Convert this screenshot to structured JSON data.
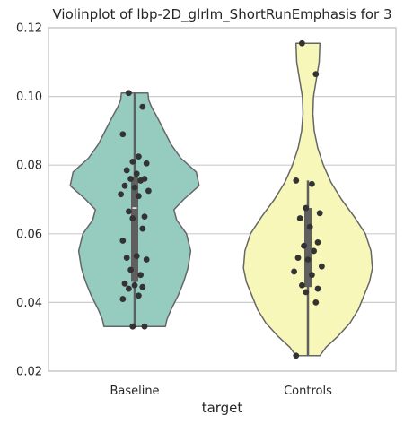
{
  "chart_data": {
    "type": "violin",
    "title": "Violinplot of lbp-2D_glrlm_ShortRunEmphasis for 3",
    "xlabel": "target",
    "ylabel": "",
    "ylim": [
      0.02,
      0.12
    ],
    "yticks": [
      "0.02",
      "0.04",
      "0.06",
      "0.08",
      "0.10",
      "0.12"
    ],
    "ytick_values": [
      0.02,
      0.04,
      0.06,
      0.08,
      0.1,
      0.12
    ],
    "grid": "horizontal",
    "categories": [
      "Baseline",
      "Controls"
    ],
    "series": [
      {
        "category": "Baseline",
        "color": "#96cbc0",
        "min": 0.033,
        "q1": 0.046,
        "median": 0.0675,
        "q3": 0.0765,
        "max": 0.101,
        "density": [
          [
            0.033,
            0.44
          ],
          [
            0.035,
            0.46
          ],
          [
            0.038,
            0.52
          ],
          [
            0.042,
            0.62
          ],
          [
            0.046,
            0.7
          ],
          [
            0.05,
            0.76
          ],
          [
            0.055,
            0.8
          ],
          [
            0.06,
            0.74
          ],
          [
            0.064,
            0.6
          ],
          [
            0.067,
            0.56
          ],
          [
            0.07,
            0.7
          ],
          [
            0.074,
            0.92
          ],
          [
            0.078,
            0.88
          ],
          [
            0.082,
            0.66
          ],
          [
            0.086,
            0.52
          ],
          [
            0.09,
            0.42
          ],
          [
            0.094,
            0.32
          ],
          [
            0.097,
            0.24
          ],
          [
            0.099,
            0.2
          ],
          [
            0.101,
            0.19
          ]
        ],
        "points": [
          0.101,
          0.097,
          0.089,
          0.0825,
          0.081,
          0.0805,
          0.0785,
          0.0775,
          0.076,
          0.076,
          0.0755,
          0.074,
          0.0735,
          0.0725,
          0.0715,
          0.071,
          0.0665,
          0.065,
          0.0645,
          0.0615,
          0.058,
          0.0535,
          0.053,
          0.0525,
          0.0495,
          0.048,
          0.0455,
          0.045,
          0.0445,
          0.044,
          0.042,
          0.041,
          0.033,
          0.033
        ]
      },
      {
        "category": "Controls",
        "color": "#f8f7ba",
        "min": 0.0245,
        "q1": 0.0445,
        "median": 0.053,
        "q3": 0.0675,
        "max": 0.0755,
        "density": [
          [
            0.0245,
            0.17
          ],
          [
            0.027,
            0.26
          ],
          [
            0.03,
            0.42
          ],
          [
            0.034,
            0.6
          ],
          [
            0.038,
            0.72
          ],
          [
            0.042,
            0.8
          ],
          [
            0.046,
            0.88
          ],
          [
            0.05,
            0.92
          ],
          [
            0.055,
            0.9
          ],
          [
            0.06,
            0.82
          ],
          [
            0.065,
            0.66
          ],
          [
            0.07,
            0.48
          ],
          [
            0.075,
            0.33
          ],
          [
            0.08,
            0.22
          ],
          [
            0.085,
            0.14
          ],
          [
            0.09,
            0.09
          ],
          [
            0.095,
            0.07
          ],
          [
            0.1,
            0.08
          ],
          [
            0.105,
            0.12
          ],
          [
            0.11,
            0.16
          ],
          [
            0.1155,
            0.17
          ]
        ],
        "points": [
          0.1155,
          0.1065,
          0.0755,
          0.0745,
          0.0675,
          0.066,
          0.0645,
          0.062,
          0.0575,
          0.0565,
          0.055,
          0.053,
          0.0525,
          0.0505,
          0.049,
          0.048,
          0.045,
          0.044,
          0.043,
          0.04,
          0.0245
        ]
      }
    ]
  }
}
